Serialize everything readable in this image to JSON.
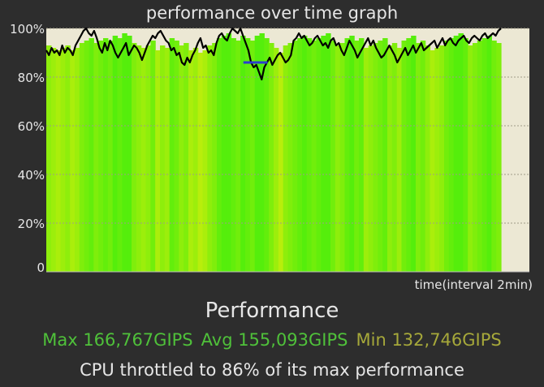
{
  "chart_data": {
    "type": "line",
    "title": "performance over time graph",
    "xlabel": "time(interval 2min)",
    "ylabel": "",
    "ylim": [
      0,
      100
    ],
    "yticks": [
      "0",
      "20%",
      "40%",
      "60%",
      "80%",
      "100%"
    ],
    "series": [
      {
        "values": [
          91,
          89,
          92,
          90,
          91,
          89,
          93,
          90,
          92,
          91,
          89,
          93,
          95,
          97,
          99,
          100,
          98,
          97,
          99,
          96,
          92,
          90,
          94,
          91,
          95,
          93,
          90,
          88,
          90,
          92,
          94,
          89,
          91,
          93,
          92,
          90,
          87,
          90,
          93,
          95,
          97,
          96,
          98,
          99,
          97,
          95,
          94,
          91,
          92,
          89,
          90,
          86,
          85,
          88,
          86,
          89,
          91,
          94,
          96,
          92,
          93,
          90,
          91,
          89,
          94,
          97,
          98,
          96,
          95,
          98,
          100,
          99,
          98,
          100,
          97,
          94,
          91,
          86,
          84,
          85,
          82,
          79,
          84,
          86,
          88,
          85,
          87,
          89,
          90,
          88,
          86,
          87,
          89,
          95,
          96,
          98,
          96,
          97,
          95,
          93,
          94,
          96,
          97,
          95,
          93,
          94,
          92,
          95,
          96,
          93,
          94,
          91,
          89,
          92,
          95,
          93,
          91,
          88,
          90,
          92,
          94,
          96,
          93,
          95,
          92,
          90,
          88,
          89,
          91,
          93,
          91,
          89,
          86,
          88,
          90,
          92,
          89,
          91,
          93,
          90,
          92,
          94,
          91,
          92,
          93,
          94,
          95,
          92,
          94,
          96,
          93,
          95,
          96,
          94,
          93,
          95,
          96,
          97,
          95,
          94,
          96,
          97,
          96,
          95,
          97,
          98,
          96,
          97,
          98,
          97,
          99,
          100
        ],
        "band_values": [
          93,
          92,
          91,
          92,
          93,
          91,
          92,
          94,
          95,
          96,
          94,
          95,
          96,
          95,
          97,
          96,
          98,
          97,
          94,
          93,
          92,
          93,
          95,
          91,
          93,
          92,
          96,
          95,
          93,
          94,
          91,
          92,
          90,
          91,
          93,
          94,
          96,
          97,
          98,
          96,
          95,
          97,
          96,
          95,
          97,
          98,
          96,
          94,
          92,
          90,
          93,
          94,
          95,
          96,
          97,
          96,
          95,
          96,
          97,
          98,
          95,
          93,
          94,
          96,
          97,
          95,
          96,
          92,
          93,
          94,
          95,
          96,
          93,
          94,
          92,
          95,
          96,
          97,
          94,
          95,
          93,
          91,
          92,
          93,
          95,
          96,
          97,
          98,
          96,
          93,
          94,
          95,
          96,
          97,
          95,
          94
        ],
        "throttle_segment": {
          "x_start": 0.408,
          "x_end": 0.458,
          "value": 86
        }
      }
    ],
    "grid": true
  },
  "labels": {
    "heading": "Performance",
    "max": "Max 166,767GIPS",
    "avg": "Avg 155,093GIPS",
    "min": "Min 132,746GIPS",
    "throttle": "CPU throttled to 86% of its max performance"
  },
  "colors": {
    "plot_bg": "#ece8d4",
    "line": "#000000",
    "throttle_line": "#2b3fd0",
    "grid": "#a09c88",
    "bar_green": "#55ee0c",
    "bar_yellow": "#b4ee0c"
  }
}
